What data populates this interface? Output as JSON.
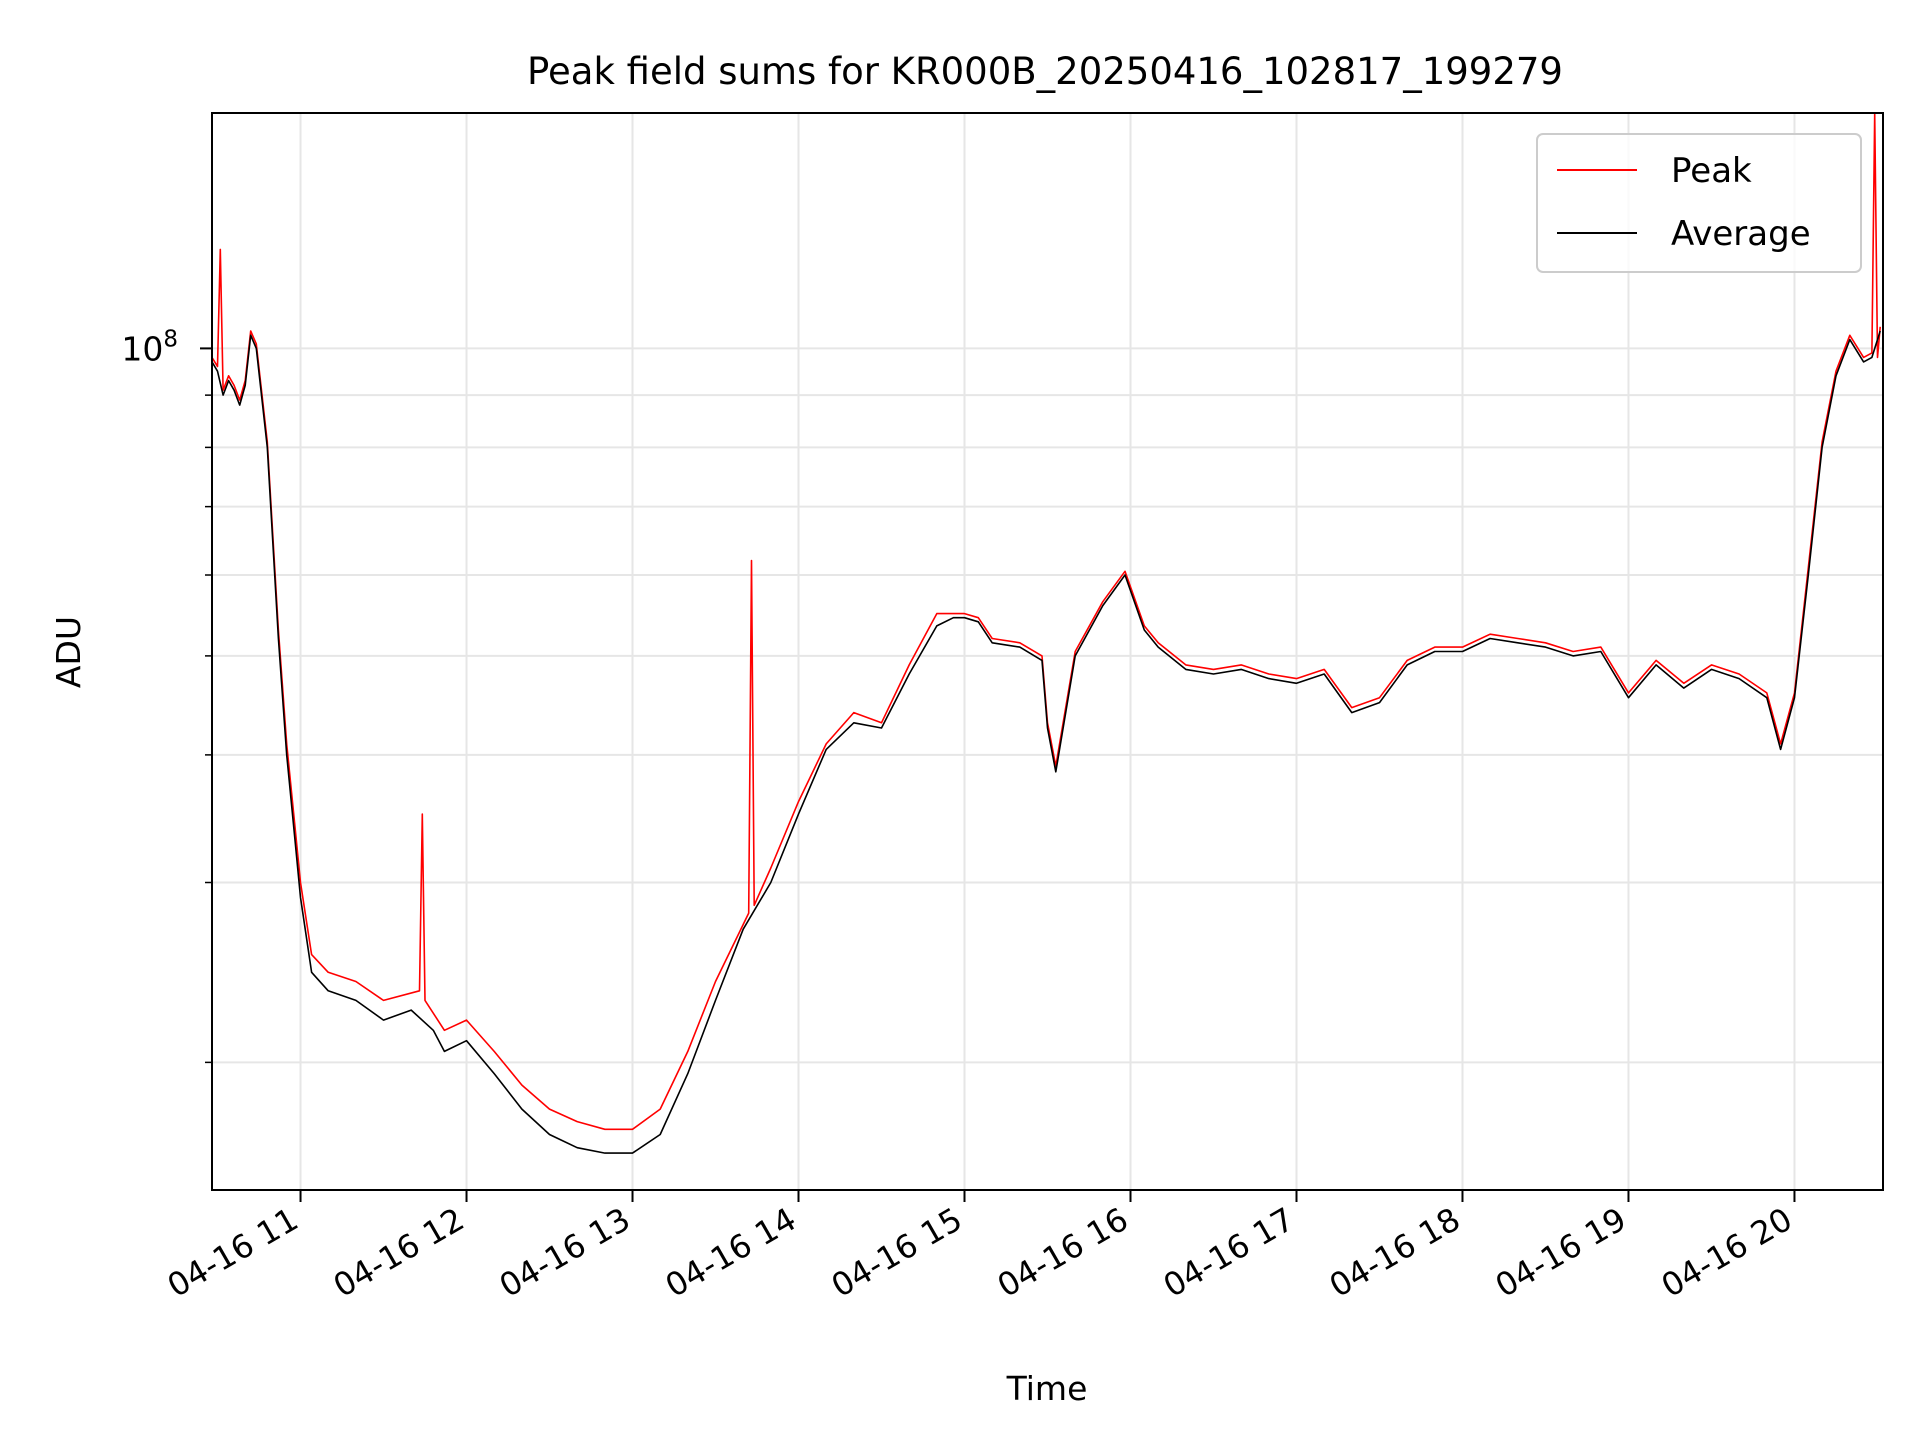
{
  "chart_data": {
    "type": "line",
    "title": "Peak field sums for KR000B_20250416_102817_199279",
    "xlabel": "Time",
    "ylabel": "ADU",
    "yscale": "log",
    "xlim": [
      "04-16 10:28",
      "04-16 20:32"
    ],
    "ylim": [
      15000000,
      170000000
    ],
    "x_ticks": [
      "04-16 11",
      "04-16 12",
      "04-16 13",
      "04-16 14",
      "04-16 15",
      "04-16 16",
      "04-16 17",
      "04-16 18",
      "04-16 19",
      "04-16 20"
    ],
    "x_tick_times": [
      "04-16 11:00",
      "04-16 12:00",
      "04-16 13:00",
      "04-16 14:00",
      "04-16 15:00",
      "04-16 16:00",
      "04-16 17:00",
      "04-16 18:00",
      "04-16 19:00",
      "04-16 20:00"
    ],
    "y_major_tick": {
      "label_base": "10",
      "label_exp": "8",
      "value": 100000000
    },
    "grid": true,
    "legend": {
      "position": "top-right",
      "entries": [
        "Peak",
        "Average"
      ]
    },
    "colors": {
      "Peak": "#ff0000",
      "Average": "#000000"
    },
    "series": [
      {
        "name": "Average",
        "x": [
          "04-16 10:28",
          "04-16 10:30",
          "04-16 10:32",
          "04-16 10:34",
          "04-16 10:36",
          "04-16 10:38",
          "04-16 10:40",
          "04-16 10:42",
          "04-16 10:44",
          "04-16 10:48",
          "04-16 10:52",
          "04-16 10:55",
          "04-16 10:58",
          "04-16 11:00",
          "04-16 11:04",
          "04-16 11:10",
          "04-16 11:20",
          "04-16 11:30",
          "04-16 11:40",
          "04-16 11:48",
          "04-16 11:52",
          "04-16 12:00",
          "04-16 12:10",
          "04-16 12:20",
          "04-16 12:30",
          "04-16 12:40",
          "04-16 12:50",
          "04-16 13:00",
          "04-16 13:10",
          "04-16 13:20",
          "04-16 13:30",
          "04-16 13:40",
          "04-16 13:50",
          "04-16 14:00",
          "04-16 14:10",
          "04-16 14:20",
          "04-16 14:30",
          "04-16 14:40",
          "04-16 14:50",
          "04-16 14:56",
          "04-16 15:00",
          "04-16 15:05",
          "04-16 15:10",
          "04-16 15:20",
          "04-16 15:28",
          "04-16 15:30",
          "04-16 15:33",
          "04-16 15:40",
          "04-16 15:50",
          "04-16 15:58",
          "04-16 16:05",
          "04-16 16:10",
          "04-16 16:20",
          "04-16 16:30",
          "04-16 16:40",
          "04-16 16:50",
          "04-16 17:00",
          "04-16 17:10",
          "04-16 17:20",
          "04-16 17:30",
          "04-16 17:40",
          "04-16 17:50",
          "04-16 18:00",
          "04-16 18:10",
          "04-16 18:20",
          "04-16 18:30",
          "04-16 18:40",
          "04-16 18:50",
          "04-16 19:00",
          "04-16 19:10",
          "04-16 19:20",
          "04-16 19:30",
          "04-16 19:40",
          "04-16 19:50",
          "04-16 19:55",
          "04-16 20:00",
          "04-16 20:05",
          "04-16 20:10",
          "04-16 20:15",
          "04-16 20:20",
          "04-16 20:25",
          "04-16 20:28",
          "04-16 20:31"
        ],
        "values": [
          97000000,
          95000000,
          90000000,
          93000000,
          91000000,
          88000000,
          92000000,
          103000000,
          100000000,
          80000000,
          52000000,
          40000000,
          33000000,
          29000000,
          24500000,
          23500000,
          23000000,
          22000000,
          22500000,
          21500000,
          20500000,
          21000000,
          19500000,
          18000000,
          17000000,
          16500000,
          16300000,
          16300000,
          17000000,
          19500000,
          23000000,
          27000000,
          30000000,
          35000000,
          40500000,
          43000000,
          42500000,
          48000000,
          53500000,
          54500000,
          54500000,
          54000000,
          51500000,
          51000000,
          49500000,
          42500000,
          38500000,
          50000000,
          56000000,
          60000000,
          53000000,
          51000000,
          48500000,
          48000000,
          48500000,
          47500000,
          47000000,
          48000000,
          44000000,
          45000000,
          49000000,
          50500000,
          50500000,
          52000000,
          51500000,
          51000000,
          50000000,
          50500000,
          45500000,
          49000000,
          46500000,
          48500000,
          47500000,
          45500000,
          40500000,
          45500000,
          60000000,
          80000000,
          94000000,
          102000000,
          97000000,
          98000000,
          104000000
        ]
      },
      {
        "name": "Peak",
        "x": [
          "04-16 10:28",
          "04-16 10:30",
          "04-16 10:31",
          "04-16 10:32",
          "04-16 10:34",
          "04-16 10:36",
          "04-16 10:38",
          "04-16 10:40",
          "04-16 10:42",
          "04-16 10:44",
          "04-16 10:48",
          "04-16 10:52",
          "04-16 10:55",
          "04-16 10:58",
          "04-16 11:00",
          "04-16 11:04",
          "04-16 11:10",
          "04-16 11:20",
          "04-16 11:30",
          "04-16 11:43",
          "04-16 11:44",
          "04-16 11:45",
          "04-16 11:52",
          "04-16 12:00",
          "04-16 12:10",
          "04-16 12:20",
          "04-16 12:30",
          "04-16 12:40",
          "04-16 12:50",
          "04-16 13:00",
          "04-16 13:10",
          "04-16 13:20",
          "04-16 13:30",
          "04-16 13:42",
          "04-16 13:43",
          "04-16 13:44",
          "04-16 13:50",
          "04-16 14:00",
          "04-16 14:10",
          "04-16 14:20",
          "04-16 14:30",
          "04-16 14:40",
          "04-16 14:50",
          "04-16 14:56",
          "04-16 15:00",
          "04-16 15:05",
          "04-16 15:10",
          "04-16 15:20",
          "04-16 15:28",
          "04-16 15:30",
          "04-16 15:33",
          "04-16 15:40",
          "04-16 15:50",
          "04-16 15:58",
          "04-16 16:05",
          "04-16 16:10",
          "04-16 16:20",
          "04-16 16:30",
          "04-16 16:40",
          "04-16 16:50",
          "04-16 17:00",
          "04-16 17:10",
          "04-16 17:20",
          "04-16 17:30",
          "04-16 17:40",
          "04-16 17:50",
          "04-16 18:00",
          "04-16 18:10",
          "04-16 18:20",
          "04-16 18:30",
          "04-16 18:40",
          "04-16 18:50",
          "04-16 19:00",
          "04-16 19:10",
          "04-16 19:20",
          "04-16 19:30",
          "04-16 19:40",
          "04-16 19:50",
          "04-16 19:55",
          "04-16 20:00",
          "04-16 20:05",
          "04-16 20:10",
          "04-16 20:15",
          "04-16 20:20",
          "04-16 20:25",
          "04-16 20:28",
          "04-16 20:29",
          "04-16 20:30",
          "04-16 20:31"
        ],
        "values": [
          98000000,
          96000000,
          125000000,
          91000000,
          94000000,
          92000000,
          89000000,
          93000000,
          104000000,
          101000000,
          81000000,
          53000000,
          41000000,
          34000000,
          30000000,
          25500000,
          24500000,
          24000000,
          23000000,
          23500000,
          35000000,
          23000000,
          21500000,
          22000000,
          20500000,
          19000000,
          18000000,
          17500000,
          17200000,
          17200000,
          18000000,
          20500000,
          24000000,
          28000000,
          62000000,
          28500000,
          31000000,
          36000000,
          41000000,
          44000000,
          43000000,
          49000000,
          55000000,
          55000000,
          55000000,
          54500000,
          52000000,
          51500000,
          50000000,
          43000000,
          39000000,
          50500000,
          56500000,
          60500000,
          53500000,
          51500000,
          49000000,
          48500000,
          49000000,
          48000000,
          47500000,
          48500000,
          44500000,
          45500000,
          49500000,
          51000000,
          51000000,
          52500000,
          52000000,
          51500000,
          50500000,
          51000000,
          46000000,
          49500000,
          47000000,
          49000000,
          48000000,
          46000000,
          41000000,
          46000000,
          61000000,
          81000000,
          95000000,
          103000000,
          98000000,
          99000000,
          170000000,
          98000000,
          105000000
        ]
      }
    ]
  }
}
